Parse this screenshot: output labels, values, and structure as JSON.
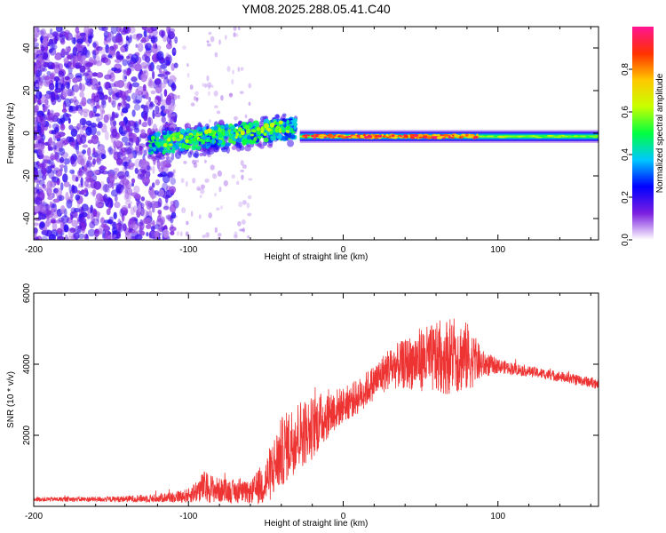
{
  "title": "YM08.2025.288.05.41.C40",
  "chart_data": [
    {
      "type": "heatmap",
      "title": "YM08.2025.288.05.41.C40",
      "xlabel": "Height of straight line (km)",
      "ylabel": "Frequency (Hz)",
      "xlim": [
        -200,
        165
      ],
      "ylim": [
        -50,
        50
      ],
      "xticks": [
        -200,
        -100,
        0,
        100
      ],
      "xtick_labels": [
        "-200",
        "-100",
        "0",
        "100"
      ],
      "yticks": [
        -40,
        -20,
        0,
        20,
        40
      ],
      "ytick_labels": [
        "-40",
        "-20",
        "0",
        "20",
        "40"
      ],
      "colorbar": {
        "label": "Normalized spectral amplitude",
        "range": [
          0,
          1
        ],
        "ticks": [
          0.0,
          0.2,
          0.4,
          0.6,
          0.8
        ],
        "tick_labels": [
          "0.0",
          "0.2",
          "0.4",
          "0.6",
          "0.8"
        ],
        "colormap": [
          "#ffffff",
          "#7b1fe0",
          "#0000ff",
          "#00c8ff",
          "#00ff40",
          "#c8ff00",
          "#ffc800",
          "#ff3000",
          "#ff1493"
        ]
      },
      "description_regions": [
        {
          "x_range": [
            -200,
            -110
          ],
          "y_range": [
            -50,
            50
          ],
          "level": 0.2
        },
        {
          "x_range": [
            -125,
            -30
          ],
          "y_range": [
            -8,
            12
          ],
          "level": 0.4
        },
        {
          "x_range": [
            -30,
            165
          ],
          "y_range": [
            -3,
            1
          ],
          "level": 0.9
        }
      ]
    },
    {
      "type": "line",
      "xlabel": "Height of straight line (km)",
      "ylabel": "SNR (10 * v/v)",
      "xlim": [
        -200,
        165
      ],
      "ylim": [
        0,
        6000
      ],
      "xticks": [
        -200,
        -100,
        0,
        100
      ],
      "xtick_labels": [
        "-200",
        "-100",
        "0",
        "100"
      ],
      "yticks": [
        2000,
        4000,
        6000
      ],
      "ytick_labels": [
        "2000",
        "4000",
        "6000"
      ],
      "series": [
        {
          "name": "SNR",
          "color": "#ee3333",
          "envelope_x": [
            -200,
            -150,
            -120,
            -100,
            -90,
            -80,
            -60,
            -50,
            -40,
            -30,
            -20,
            -10,
            0,
            10,
            20,
            30,
            40,
            50,
            60,
            70,
            80,
            90,
            100,
            120,
            140,
            165
          ],
          "envelope_mean": [
            200,
            200,
            230,
            300,
            550,
            450,
            380,
            700,
            1500,
            2000,
            2200,
            2600,
            2850,
            3100,
            3500,
            3900,
            4000,
            4150,
            4150,
            4250,
            4200,
            4000,
            3950,
            3800,
            3650,
            3450
          ],
          "envelope_amp": [
            60,
            80,
            120,
            200,
            450,
            350,
            300,
            700,
            1000,
            1000,
            900,
            700,
            500,
            500,
            500,
            600,
            700,
            900,
            1000,
            1100,
            1000,
            400,
            200,
            150,
            150,
            150
          ]
        }
      ]
    }
  ]
}
